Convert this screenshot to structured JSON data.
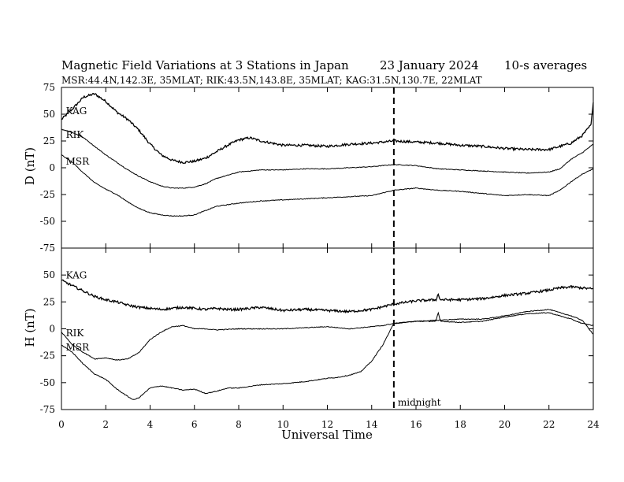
{
  "chart_data": {
    "type": "line",
    "title": "Magnetic Field Variations at 3 Stations in Japan",
    "date": "23 January  2024",
    "note": "10-s averages",
    "subtitle": "MSR:44.4N,142.3E, 35MLAT;  RIK:43.5N,143.8E, 35MLAT;  KAG:31.5N,130.7E, 22MLAT",
    "xlabel": "Universal Time",
    "xlim": [
      0,
      24
    ],
    "x_ticks": [
      0,
      2,
      4,
      6,
      8,
      10,
      12,
      14,
      16,
      18,
      20,
      22,
      24
    ],
    "marker": {
      "x": 15,
      "label": "midnight"
    },
    "panels": [
      {
        "ylabel": "D (nT)",
        "ylim": [
          -75,
          75
        ],
        "y_ticks": [
          75,
          50,
          25,
          0,
          -25,
          -50,
          -75
        ],
        "series": [
          {
            "name": "KAG",
            "x": [
              0,
              0.5,
              1,
              1.5,
              2,
              2.5,
              3,
              3.5,
              4,
              4.5,
              5,
              5.5,
              6,
              6.5,
              7,
              7.5,
              8,
              8.5,
              9,
              9.5,
              10,
              11,
              12,
              13,
              14,
              15,
              16,
              17,
              18,
              19,
              20,
              21,
              22,
              22.5,
              23,
              23.5,
              23.9,
              24
            ],
            "y": [
              45,
              55,
              66,
              69,
              62,
              52,
              45,
              35,
              22,
              12,
              7,
              5,
              6,
              9,
              15,
              21,
              26,
              28,
              25,
              23,
              21,
              21,
              20,
              22,
              23,
              25,
              24,
              23,
              21,
              20,
              18,
              17,
              17,
              20,
              23,
              30,
              40,
              62
            ]
          },
          {
            "name": "RIK",
            "x": [
              0,
              0.5,
              1,
              1.5,
              2,
              2.5,
              3,
              3.5,
              4,
              4.5,
              5,
              5.5,
              6,
              6.5,
              7,
              8,
              9,
              10,
              11,
              12,
              13,
              14,
              15,
              16,
              17,
              18,
              19,
              20,
              21,
              22,
              22.5,
              23,
              23.5,
              24
            ],
            "y": [
              36,
              33,
              28,
              20,
              12,
              5,
              -2,
              -8,
              -13,
              -17,
              -19,
              -19,
              -18,
              -15,
              -10,
              -4,
              -2,
              -2,
              -1,
              -1,
              0,
              1,
              3,
              2,
              -1,
              -2,
              -3,
              -4,
              -5,
              -4,
              -1,
              8,
              14,
              22
            ]
          },
          {
            "name": "MSR",
            "x": [
              0,
              0.5,
              1,
              1.5,
              2,
              2.5,
              3,
              3.5,
              4,
              4.5,
              5,
              5.5,
              6,
              6.5,
              7,
              8,
              9,
              10,
              11,
              12,
              13,
              14,
              15,
              16,
              17,
              18,
              19,
              20,
              21,
              22,
              22.5,
              23,
              23.5,
              24
            ],
            "y": [
              12,
              5,
              -5,
              -14,
              -20,
              -25,
              -32,
              -38,
              -42,
              -44,
              -45,
              -45,
              -44,
              -40,
              -36,
              -33,
              -31,
              -30,
              -29,
              -28,
              -27,
              -26,
              -21,
              -19,
              -21,
              -22,
              -24,
              -26,
              -25,
              -26,
              -21,
              -13,
              -6,
              -1
            ]
          }
        ],
        "labels": [
          {
            "text": "KAG",
            "x": 0.2,
            "y": 50
          },
          {
            "text": "RIK",
            "x": 0.2,
            "y": 28
          },
          {
            "text": "MSR",
            "x": 0.2,
            "y": 3
          }
        ]
      },
      {
        "ylabel": "H (nT)",
        "ylim": [
          -75,
          75
        ],
        "y_ticks": [
          50,
          25,
          0,
          -25,
          -50,
          -75
        ],
        "series": [
          {
            "name": "KAG",
            "x": [
              0,
              0.5,
              1,
              1.5,
              2,
              2.5,
              3,
              3.5,
              4,
              4.5,
              5,
              5.5,
              6,
              6.5,
              7,
              7.5,
              8,
              8.5,
              9,
              10,
              11,
              12,
              13,
              14,
              15,
              16,
              16.9,
              17,
              17.1,
              18,
              19,
              20,
              21,
              22,
              22.5,
              23,
              23.5,
              24
            ],
            "y": [
              45,
              40,
              35,
              30,
              27,
              25,
              22,
              20,
              19,
              18,
              19,
              20,
              19,
              18,
              19,
              18,
              18,
              19,
              20,
              17,
              18,
              17,
              16,
              18,
              23,
              26,
              27,
              32,
              27,
              27,
              28,
              31,
              33,
              36,
              38,
              39,
              38,
              37
            ]
          },
          {
            "name": "RIK",
            "x": [
              0,
              0.5,
              1,
              1.5,
              2,
              2.5,
              3,
              3.5,
              4,
              4.5,
              5,
              5.5,
              6,
              6.5,
              7,
              8,
              9,
              10,
              11,
              12,
              13,
              14,
              14.5,
              15,
              15.5,
              16,
              17,
              18,
              19,
              20,
              21,
              22,
              22.5,
              23,
              23.5,
              24
            ],
            "y": [
              -3,
              -15,
              -22,
              -28,
              -27,
              -29,
              -28,
              -22,
              -10,
              -3,
              2,
              3,
              0,
              0,
              -1,
              0,
              0,
              0,
              1,
              2,
              0,
              2,
              3,
              5,
              6,
              7,
              8,
              9,
              9,
              12,
              16,
              18,
              15,
              12,
              8,
              -5
            ]
          },
          {
            "name": "MSR",
            "x": [
              0,
              0.5,
              1,
              1.5,
              2,
              2.5,
              3,
              3.25,
              3.5,
              4,
              4.5,
              5,
              5.5,
              6,
              6.5,
              7,
              7.5,
              8,
              9,
              10,
              11,
              12,
              12.5,
              13,
              13.5,
              14,
              14.5,
              15,
              15.5,
              16,
              16.9,
              17,
              17.1,
              18,
              19,
              20,
              21,
              22,
              22.5,
              23,
              23.5,
              24
            ],
            "y": [
              -15,
              -22,
              -33,
              -42,
              -47,
              -56,
              -63,
              -66,
              -64,
              -55,
              -53,
              -55,
              -57,
              -56,
              -60,
              -58,
              -55,
              -55,
              -52,
              -51,
              -49,
              -46,
              -45,
              -43,
              -40,
              -30,
              -15,
              5,
              6,
              7,
              7,
              15,
              7,
              6,
              7,
              11,
              14,
              15,
              12,
              9,
              5,
              3
            ]
          }
        ],
        "labels": [
          {
            "text": "KAG",
            "x": 0.2,
            "y": 47
          },
          {
            "text": "RIK",
            "x": 0.2,
            "y": -7
          },
          {
            "text": "MSR",
            "x": 0.2,
            "y": -20
          }
        ]
      }
    ]
  }
}
